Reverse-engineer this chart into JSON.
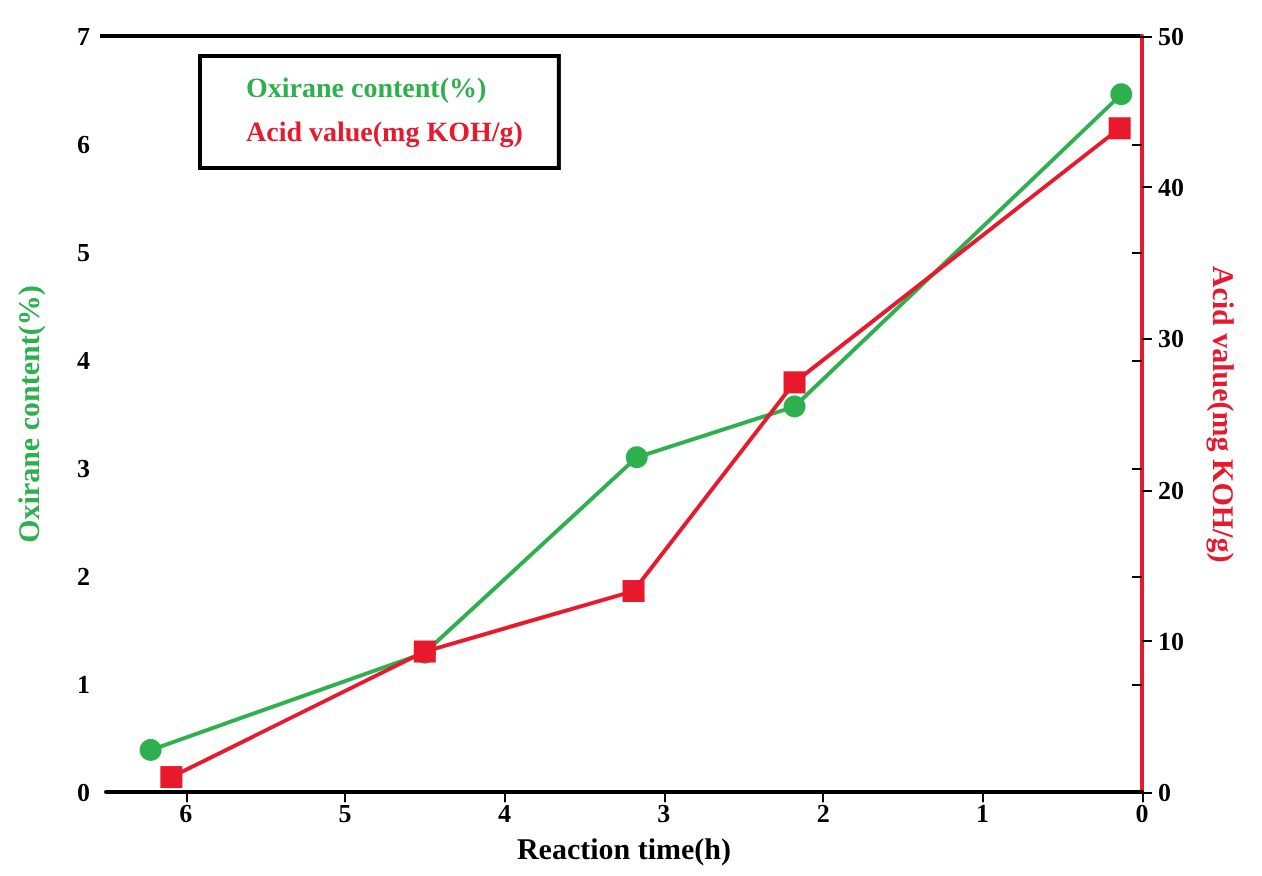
{
  "chart_data": {
    "type": "line",
    "xlabel": "Reaction time(h)",
    "ylabel": "Oxirane content(%)",
    "y2label": "Acid value(mg KOH/g)",
    "xlim": [
      6.5,
      0
    ],
    "xticks": [
      6,
      5,
      4,
      3,
      2,
      1,
      0
    ],
    "ylim": [
      0,
      7
    ],
    "yticks": [
      0,
      1,
      2,
      3,
      4,
      5,
      6,
      7
    ],
    "y2lim": [
      0,
      50
    ],
    "y2ticks": [
      0,
      10,
      20,
      30,
      40,
      50
    ],
    "legend": "top left",
    "grid": false,
    "series": [
      {
        "name": "Oxirane content(%)",
        "color": "#2eb04e",
        "marker": "circle",
        "x": [
          6.22,
          4.5,
          3.17,
          2.18,
          0.13
        ],
        "values": [
          0.39,
          1.29,
          3.1,
          3.57,
          6.46
        ]
      },
      {
        "name": "Acid value(mg KOH/g)",
        "color": "#e8192c",
        "marker": "square",
        "axis": "y2",
        "x": [
          6.09,
          4.5,
          3.19,
          2.18,
          0.14
        ],
        "values": [
          1.0,
          9.3,
          13.3,
          27.1,
          43.9
        ]
      }
    ]
  }
}
